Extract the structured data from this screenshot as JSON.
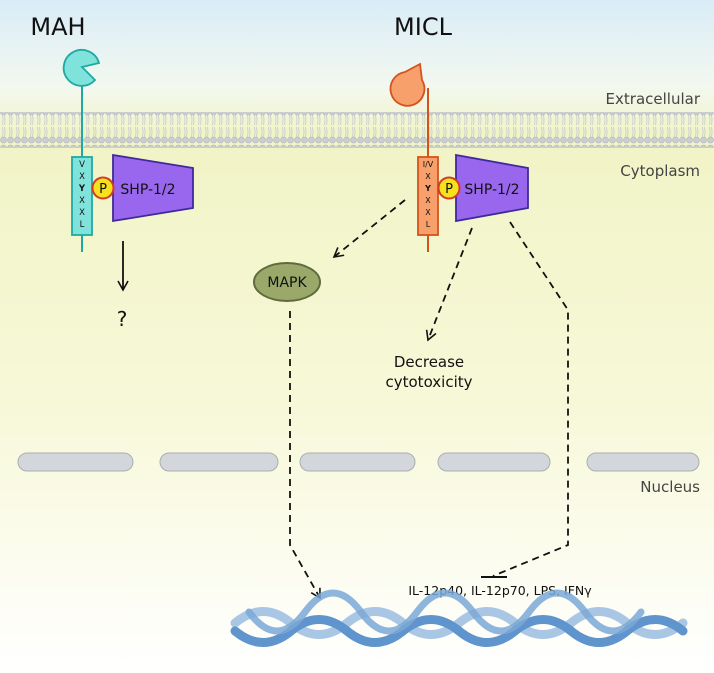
{
  "labels": {
    "mah": "MAH",
    "micl": "MICL",
    "extracellular": "Extracellular",
    "cytoplasm": "Cytoplasm",
    "nucleus": "Nucleus"
  },
  "mah_motif": [
    "V",
    "X",
    "Y",
    "X",
    "X",
    "L"
  ],
  "micl_motif": [
    "I/V",
    "X",
    "Y",
    "X",
    "X",
    "L"
  ],
  "phospho": "P",
  "shp_mah": "SHP-1/2",
  "shp_micl": "SHP-1/2",
  "unknown": "?",
  "mapk": "MAPK",
  "decrease_line1": "Decrease",
  "decrease_line2": "cytotoxicity",
  "cytokines": "IL-12p40, IL-12p70, LPS, IFNγ",
  "colors": {
    "mah": "#3cc4c0",
    "mah_fill": "#7fe3dc",
    "micl": "#e8682a",
    "micl_fill": "#f7a06c",
    "shp": "#9966ee",
    "mapk": "#9aa86a",
    "dna": "#7aa8d6"
  }
}
